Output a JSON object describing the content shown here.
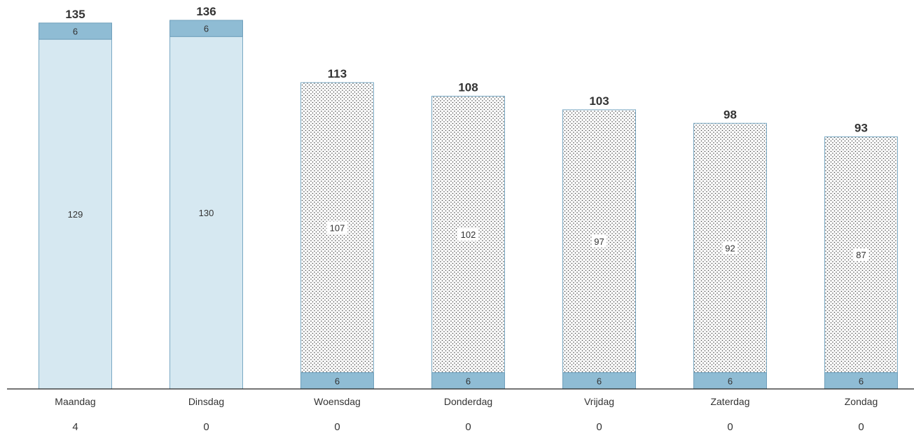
{
  "chart_data": {
    "type": "bar",
    "stacked": true,
    "title": "",
    "xlabel": "",
    "ylabel": "",
    "categories": [
      "Maandag",
      "Dinsdag",
      "Woensdag",
      "Donderdag",
      "Vrijdag",
      "Zaterdag",
      "Zondag"
    ],
    "series": [
      {
        "values": [
          6,
          6,
          6,
          6,
          6,
          6,
          6
        ],
        "color": "#8fbcd4",
        "position": [
          "top",
          "top",
          "bottom",
          "bottom",
          "bottom",
          "bottom",
          "bottom"
        ]
      },
      {
        "values": [
          129,
          130,
          107,
          102,
          97,
          92,
          87
        ],
        "color": "#d6e8f1",
        "dotted": [
          false,
          false,
          true,
          true,
          true,
          true,
          true
        ]
      }
    ],
    "totals": [
      135,
      136,
      113,
      108,
      103,
      98,
      93
    ],
    "bottom_values": [
      "4",
      "0",
      "0",
      "0",
      "0",
      "0",
      "0"
    ],
    "ylim": [
      0,
      136
    ],
    "grid": false,
    "legend": "none"
  }
}
